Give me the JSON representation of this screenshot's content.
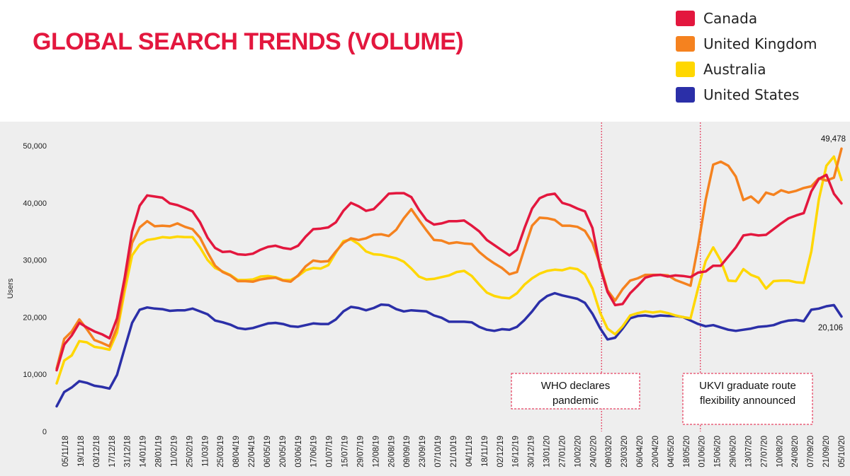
{
  "title": "GLOBAL SEARCH TRENDS (VOLUME)",
  "legend": [
    {
      "label": "Canada",
      "color": "#e3173e"
    },
    {
      "label": "United Kingdom",
      "color": "#f5821f"
    },
    {
      "label": "Australia",
      "color": "#ffd700"
    },
    {
      "label": "United States",
      "color": "#2b2fa8"
    }
  ],
  "chart_data": {
    "type": "line",
    "ylabel": "Users",
    "xlabel": "",
    "ylim": [
      0,
      50000
    ],
    "yticks": [
      0,
      10000,
      20000,
      30000,
      40000,
      50000
    ],
    "ytick_labels": [
      "0",
      "10,000",
      "20,000",
      "30,000",
      "40,000",
      "50,000"
    ],
    "grid": false,
    "legend_position": "top-right",
    "x_tick_labels": [
      "05/11/18",
      "19/11/18",
      "03/12/18",
      "17/12/18",
      "31/12/18",
      "14/01/19",
      "28/01/19",
      "11/02/19",
      "25/02/19",
      "11/03/19",
      "25/03/19",
      "08/04/19",
      "22/04/19",
      "06/05/19",
      "20/05/19",
      "03/06/19",
      "17/06/19",
      "01/07/19",
      "15/07/19",
      "29/07/19",
      "12/08/19",
      "26/08/19",
      "09/09/19",
      "23/09/19",
      "07/10/19",
      "21/10/19",
      "04/11/19",
      "18/11/19",
      "02/12/19",
      "16/12/19",
      "30/12/19",
      "13/01/20",
      "27/01/20",
      "10/02/20",
      "24/02/20",
      "09/03/20",
      "23/03/20",
      "06/04/20",
      "20/04/20",
      "04/05/20",
      "18/05/20",
      "01/06/20",
      "15/06/20",
      "29/06/20",
      "13/07/20",
      "27/07/20",
      "10/08/20",
      "24/08/20",
      "07/09/20",
      "21/09/20",
      "05/10/20"
    ],
    "series": [
      {
        "name": "Canada",
        "color": "#e3173e",
        "values": [
          10700,
          15200,
          16800,
          19000,
          18200,
          17500,
          17000,
          16300,
          19800,
          26800,
          35000,
          39500,
          41300,
          41100,
          40900,
          39900,
          39600,
          39100,
          38500,
          36600,
          33900,
          32100,
          31400,
          31500,
          31000,
          30900,
          31100,
          31800,
          32300,
          32500,
          32100,
          31900,
          32500,
          34100,
          35400,
          35500,
          35700,
          36600,
          38600,
          40000,
          39400,
          38600,
          38900,
          40200,
          41600,
          41700,
          41700,
          41000,
          38800,
          37000,
          36200,
          36400,
          36800,
          36800,
          36900,
          36000,
          35000,
          33500,
          32600,
          31700,
          30800,
          31800,
          35600,
          39000,
          40800,
          41400,
          41600,
          40000,
          39600,
          39000,
          38500,
          35600,
          28800,
          24400,
          22100,
          22300,
          24200,
          25500,
          26900,
          27300,
          27400,
          27100,
          27300,
          27200,
          27000,
          27800,
          28000,
          29000,
          29000,
          30600,
          32200,
          34300,
          34500,
          34300,
          34400,
          35400,
          36400,
          37300,
          37800,
          38200,
          42000,
          44200,
          44900,
          41600,
          39900
        ]
      },
      {
        "name": "United Kingdom",
        "color": "#f5821f",
        "values": [
          11000,
          16200,
          17500,
          19600,
          17900,
          16000,
          15500,
          14900,
          18200,
          25900,
          33000,
          35700,
          36800,
          35900,
          36000,
          35900,
          36400,
          35800,
          35400,
          33900,
          31300,
          29000,
          27900,
          27300,
          26300,
          26300,
          26200,
          26600,
          26800,
          26900,
          26400,
          26200,
          27300,
          28900,
          29900,
          29700,
          29800,
          31500,
          33000,
          33800,
          33500,
          33800,
          34400,
          34500,
          34200,
          35300,
          37300,
          38900,
          37000,
          35200,
          33500,
          33400,
          32900,
          33100,
          32900,
          32800,
          31400,
          30300,
          29400,
          28600,
          27500,
          27900,
          32000,
          36000,
          37400,
          37300,
          37000,
          36000,
          36000,
          35800,
          35100,
          33000,
          29200,
          24700,
          22900,
          24900,
          26400,
          26800,
          27400,
          27400,
          27400,
          27300,
          26500,
          26000,
          25500,
          32500,
          40500,
          46700,
          47200,
          46500,
          44600,
          40500,
          41100,
          40000,
          41800,
          41400,
          42200,
          41800,
          42100,
          42600,
          42900,
          44300,
          43900,
          44400,
          49478
        ]
      },
      {
        "name": "Australia",
        "color": "#ffd700",
        "values": [
          8400,
          12400,
          13300,
          15800,
          15600,
          14800,
          14600,
          14300,
          17300,
          24500,
          30800,
          32700,
          33500,
          33700,
          34000,
          33900,
          34100,
          34000,
          34000,
          32200,
          30000,
          28600,
          28000,
          27400,
          26500,
          26500,
          26600,
          27100,
          27200,
          27000,
          26500,
          26500,
          27200,
          28200,
          28600,
          28500,
          29100,
          31300,
          33300,
          33600,
          32800,
          31500,
          31000,
          30900,
          30600,
          30300,
          29700,
          28500,
          27100,
          26600,
          26700,
          27000,
          27300,
          27900,
          28100,
          27200,
          25700,
          24300,
          23700,
          23400,
          23300,
          24200,
          25700,
          26800,
          27600,
          28100,
          28300,
          28200,
          28600,
          28400,
          27500,
          25000,
          20800,
          18000,
          17000,
          18400,
          20300,
          20700,
          21000,
          20800,
          21000,
          20700,
          20300,
          20000,
          19800,
          25100,
          29800,
          32200,
          29900,
          26400,
          26300,
          28400,
          27400,
          26900,
          25000,
          26300,
          26400,
          26400,
          26100,
          26000,
          31500,
          40600,
          46500,
          48100,
          44000
        ]
      },
      {
        "name": "United States",
        "color": "#2b2fa8",
        "values": [
          4400,
          6900,
          7700,
          8800,
          8500,
          8000,
          7800,
          7500,
          9900,
          14500,
          19000,
          21300,
          21700,
          21500,
          21400,
          21100,
          21200,
          21200,
          21500,
          21000,
          20500,
          19400,
          19100,
          18700,
          18100,
          17900,
          18100,
          18500,
          18900,
          19000,
          18800,
          18400,
          18300,
          18600,
          18900,
          18800,
          18800,
          19600,
          21000,
          21800,
          21600,
          21200,
          21600,
          22200,
          22100,
          21400,
          21000,
          21200,
          21100,
          21000,
          20300,
          19900,
          19200,
          19200,
          19200,
          19100,
          18300,
          17800,
          17600,
          17900,
          17800,
          18300,
          19500,
          21000,
          22700,
          23700,
          24200,
          23800,
          23500,
          23200,
          22500,
          20600,
          18100,
          16100,
          16400,
          18000,
          19800,
          20200,
          20300,
          20100,
          20300,
          20200,
          20200,
          20000,
          19400,
          18800,
          18400,
          18600,
          18200,
          17800,
          17600,
          17800,
          18000,
          18300,
          18400,
          18600,
          19100,
          19400,
          19500,
          19300,
          21300,
          21500,
          21900,
          22100,
          20106
        ]
      }
    ],
    "annotations": [
      {
        "text": "49,478",
        "series": "United Kingdom"
      },
      {
        "text": "20,106",
        "series": "United States"
      },
      {
        "lines": [
          "WHO declares",
          "pandemic"
        ]
      },
      {
        "lines": [
          "UKVI graduate route",
          "flexibility announced"
        ]
      }
    ]
  }
}
